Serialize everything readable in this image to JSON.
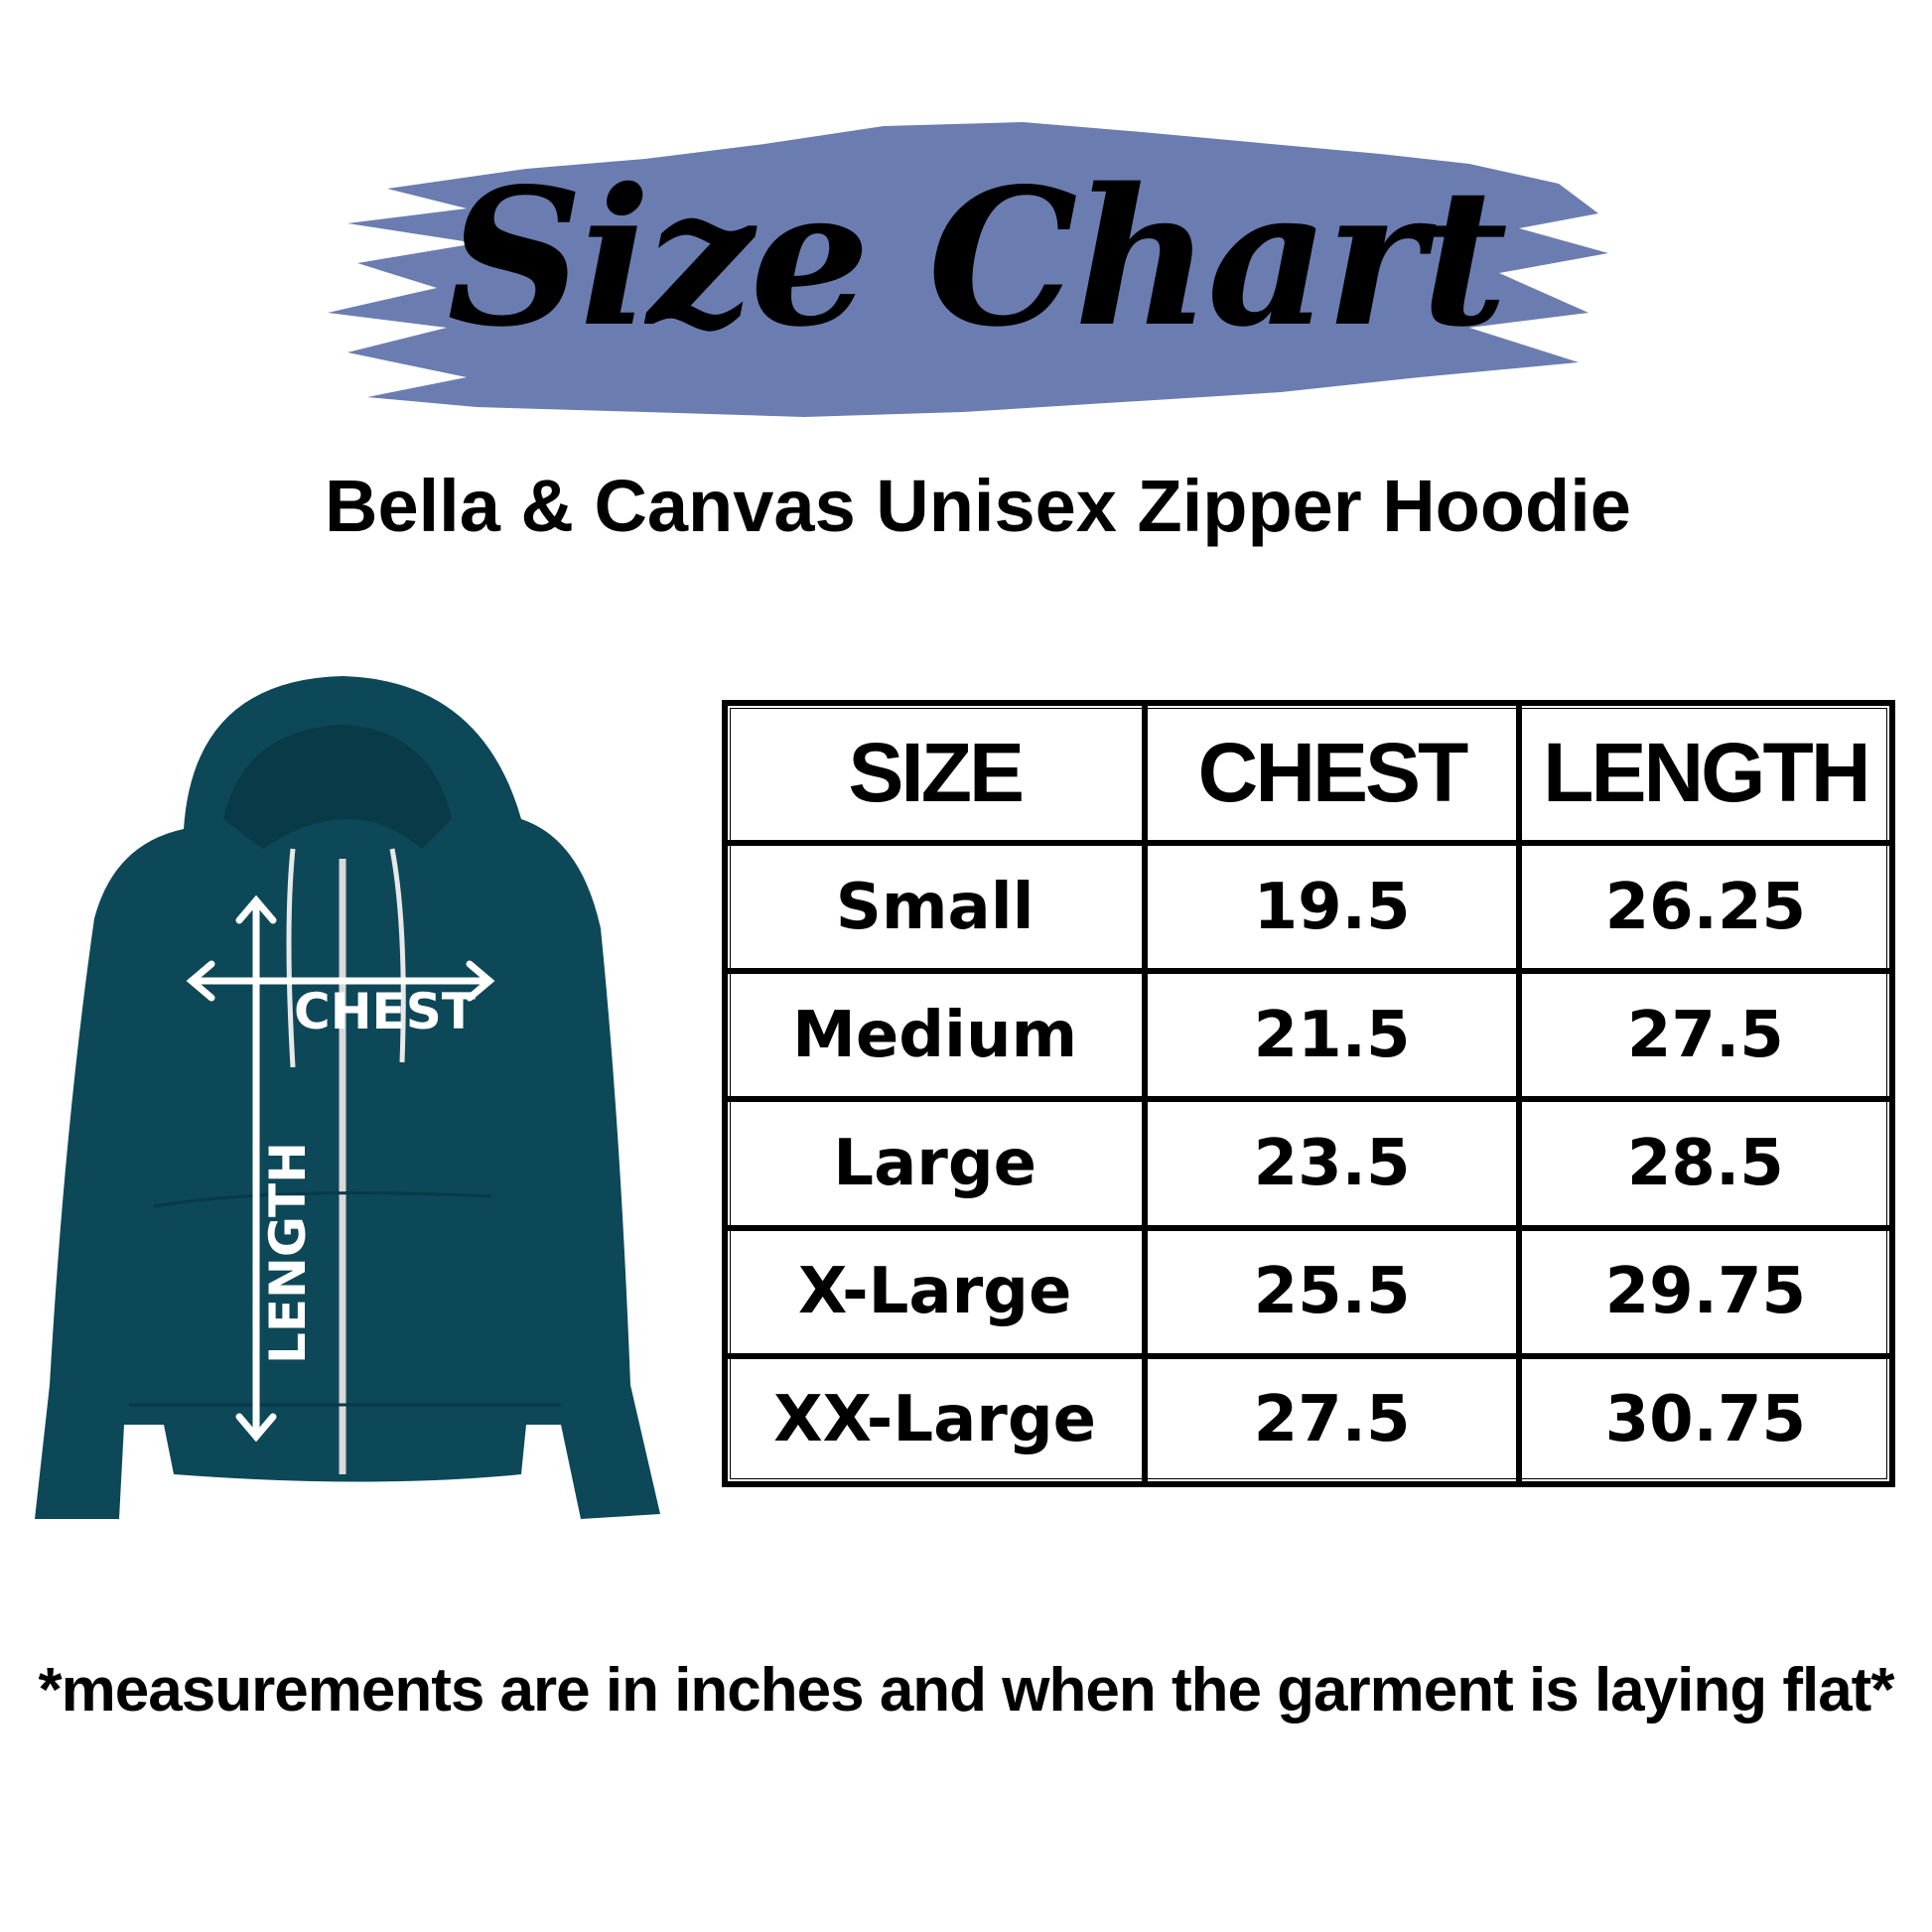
{
  "title": "Size Chart",
  "subtitle": "Bella & Canvas Unisex Zipper Hoodie",
  "colors": {
    "brush": "#6b7db0",
    "hoodie": "#0d4858",
    "text": "#000000"
  },
  "diagram": {
    "chest_label": "CHEST",
    "length_label": "LENGTH"
  },
  "table": {
    "headers": [
      "SIZE",
      "CHEST",
      "LENGTH"
    ],
    "rows": [
      [
        "Small",
        "19.5",
        "26.25"
      ],
      [
        "Medium",
        "21.5",
        "27.5"
      ],
      [
        "Large",
        "23.5",
        "28.5"
      ],
      [
        "X-Large",
        "25.5",
        "29.75"
      ],
      [
        "XX-Large",
        "27.5",
        "30.75"
      ]
    ]
  },
  "footer": "*measurements are in inches and when the garment is laying flat*"
}
